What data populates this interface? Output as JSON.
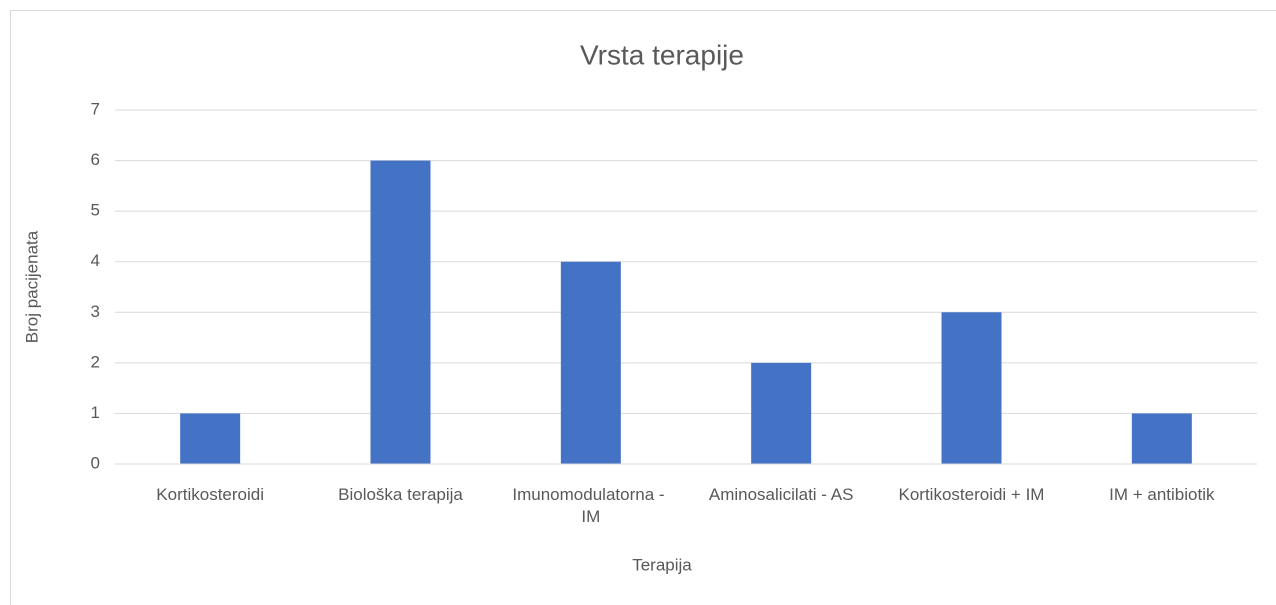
{
  "chart_data": {
    "type": "bar",
    "title": "Vrsta terapije",
    "x_label": "Terapija",
    "y_label": "Broj pacijenata",
    "categories": [
      "Kortikosteroidi",
      "Biološka terapija",
      "Imunomodulatorna - IM",
      "Aminosalicilati - AS",
      "Kortikosteroidi + IM",
      "IM + antibiotik"
    ],
    "values": [
      1,
      6,
      4,
      2,
      3,
      1
    ],
    "color": "#4472c4",
    "ylim": [
      0,
      7
    ],
    "yticks": [
      0,
      1,
      2,
      3,
      4,
      5,
      6,
      7
    ],
    "grid": true
  }
}
